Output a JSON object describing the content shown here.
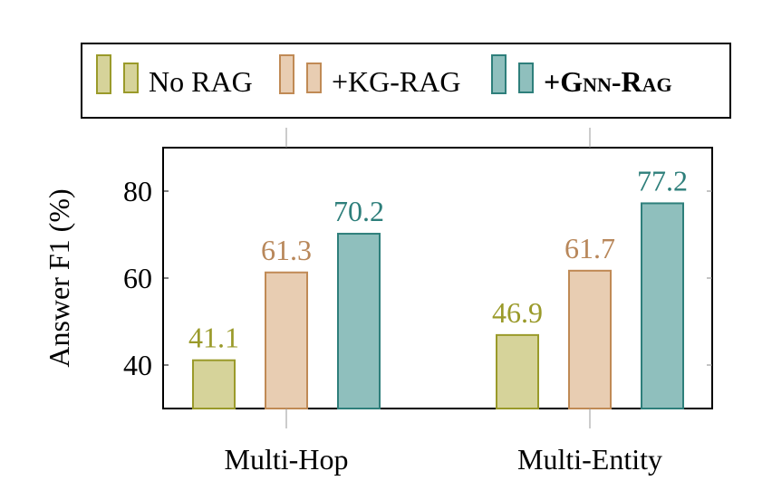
{
  "chart_data": {
    "type": "bar",
    "categories": [
      "Multi-Hop",
      "Multi-Entity"
    ],
    "series": [
      {
        "name": "No RAG",
        "values": [
          41.1,
          46.9
        ],
        "fill": "#d6d39a",
        "stroke": "#9a9a2a",
        "label_color": "#9a9a2a"
      },
      {
        "name": "+KG-RAG",
        "values": [
          61.3,
          61.7
        ],
        "fill": "#e8cdb2",
        "stroke": "#c08a55",
        "label_color": "#b8875a"
      },
      {
        "name": "+GNN-RAG",
        "values": [
          70.2,
          77.2
        ],
        "fill": "#8fbfbd",
        "stroke": "#2e7f7b",
        "label_color": "#2e7f7b"
      }
    ],
    "value_labels": [
      [
        "41.1",
        "46.9"
      ],
      [
        "61.3",
        "61.7"
      ],
      [
        "70.2",
        "77.2"
      ]
    ],
    "legend": {
      "position": "top",
      "entries": [
        "No RAG",
        "+KG-RAG",
        "+Gnn-Rag"
      ]
    },
    "ylabel": "Answer F1 (%)",
    "xlabel": "",
    "ylim": [
      30,
      90
    ],
    "yticks": [
      40,
      60,
      80
    ],
    "ytick_labels": [
      "40",
      "60",
      "80"
    ],
    "grid": false
  }
}
